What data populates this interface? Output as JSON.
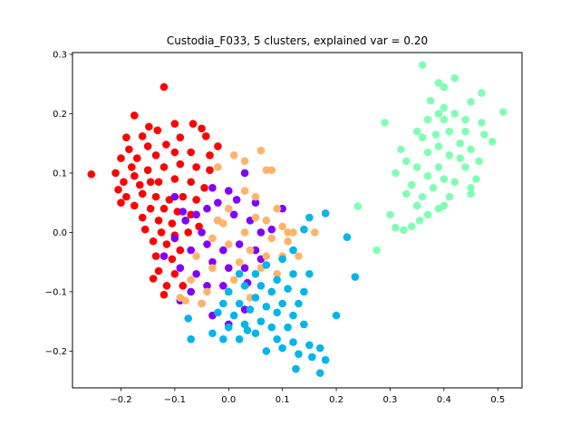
{
  "chart_data": {
    "type": "scatter",
    "title": "Custodia_F033, 5 clusters, explained var = 0.20",
    "xlabel": "",
    "ylabel": "",
    "xlim": [
      -0.29,
      0.545
    ],
    "ylim": [
      -0.262,
      0.303
    ],
    "x_ticks": [
      -0.2,
      -0.1,
      0.0,
      0.1,
      0.2,
      0.3,
      0.4,
      0.5
    ],
    "x_tick_labels": [
      "−0.2",
      "−0.1",
      "0.0",
      "0.1",
      "0.2",
      "0.3",
      "0.4",
      "0.5"
    ],
    "y_ticks": [
      -0.2,
      -0.1,
      0.0,
      0.1,
      0.2,
      0.3
    ],
    "y_tick_labels": [
      "−0.2",
      "−0.1",
      "0.0",
      "0.1",
      "0.2",
      "0.3"
    ],
    "grid": false,
    "legend": "none",
    "series": [
      {
        "color": "#ff0000",
        "points": [
          [
            -0.255,
            0.098
          ],
          [
            -0.12,
            0.245
          ],
          [
            -0.175,
            0.197
          ],
          [
            -0.148,
            0.178
          ],
          [
            -0.19,
            0.16
          ],
          [
            -0.16,
            0.162
          ],
          [
            -0.132,
            0.172
          ],
          [
            -0.1,
            0.183
          ],
          [
            -0.066,
            0.183
          ],
          [
            -0.185,
            0.14
          ],
          [
            -0.15,
            0.145
          ],
          [
            -0.116,
            0.148
          ],
          [
            -0.09,
            0.16
          ],
          [
            -0.042,
            0.162
          ],
          [
            -0.2,
            0.125
          ],
          [
            -0.17,
            0.125
          ],
          [
            -0.135,
            0.13
          ],
          [
            -0.1,
            0.135
          ],
          [
            -0.07,
            0.135
          ],
          [
            -0.035,
            0.13
          ],
          [
            -0.21,
            0.1
          ],
          [
            -0.18,
            0.11
          ],
          [
            -0.15,
            0.105
          ],
          [
            -0.12,
            0.11
          ],
          [
            -0.09,
            0.115
          ],
          [
            -0.06,
            0.11
          ],
          [
            -0.035,
            0.105
          ],
          [
            -0.195,
            0.085
          ],
          [
            -0.165,
            0.08
          ],
          [
            -0.13,
            0.085
          ],
          [
            -0.1,
            0.09
          ],
          [
            -0.07,
            0.085
          ],
          [
            -0.045,
            0.075
          ],
          [
            -0.19,
            0.06
          ],
          [
            -0.16,
            0.065
          ],
          [
            -0.135,
            0.06
          ],
          [
            -0.11,
            0.055
          ],
          [
            -0.085,
            0.06
          ],
          [
            -0.06,
            0.055
          ],
          [
            -0.2,
            0.05
          ],
          [
            -0.175,
            0.045
          ],
          [
            -0.145,
            0.04
          ],
          [
            -0.12,
            0.04
          ],
          [
            -0.095,
            0.035
          ],
          [
            -0.07,
            0.03
          ],
          [
            -0.16,
            0.025
          ],
          [
            -0.13,
            0.02
          ],
          [
            -0.105,
            0.015
          ],
          [
            -0.08,
            0.02
          ],
          [
            -0.055,
            0.01
          ],
          [
            -0.155,
            0.005
          ],
          [
            -0.125,
            0.0
          ],
          [
            -0.1,
            -0.005
          ],
          [
            -0.075,
            0.0
          ],
          [
            -0.14,
            -0.015
          ],
          [
            -0.115,
            -0.02
          ],
          [
            -0.09,
            -0.03
          ],
          [
            -0.135,
            -0.04
          ],
          [
            -0.105,
            -0.045
          ],
          [
            -0.13,
            -0.065
          ],
          [
            -0.1,
            -0.07
          ],
          [
            -0.115,
            -0.09
          ],
          [
            -0.085,
            -0.09
          ],
          [
            -0.12,
            -0.105
          ],
          [
            -0.14,
            -0.078
          ],
          [
            -0.02,
            0.145
          ],
          [
            -0.05,
            0.175
          ],
          [
            -0.205,
            0.072
          ],
          [
            -0.175,
            0.095
          ],
          [
            -0.145,
            0.085
          ]
        ]
      },
      {
        "color": "#8000ff",
        "points": [
          [
            -0.1,
            0.06
          ],
          [
            -0.06,
            0.03
          ],
          [
            -0.03,
            0.075
          ],
          [
            0.0,
            0.07
          ],
          [
            0.03,
            0.1
          ],
          [
            0.05,
            0.05
          ],
          [
            -0.08,
            0.02
          ],
          [
            -0.05,
            0.0
          ],
          [
            -0.02,
            0.02
          ],
          [
            0.01,
            0.03
          ],
          [
            0.04,
            0.02
          ],
          [
            0.06,
            0.0
          ],
          [
            -0.1,
            -0.01
          ],
          [
            -0.07,
            -0.03
          ],
          [
            -0.04,
            -0.02
          ],
          [
            -0.01,
            -0.03
          ],
          [
            0.02,
            -0.02
          ],
          [
            0.05,
            -0.03
          ],
          [
            -0.09,
            -0.06
          ],
          [
            -0.06,
            -0.07
          ],
          [
            -0.03,
            -0.05
          ],
          [
            0.0,
            -0.06
          ],
          [
            0.03,
            -0.06
          ],
          [
            -0.07,
            -0.1
          ],
          [
            -0.04,
            -0.09
          ],
          [
            -0.01,
            -0.09
          ],
          [
            -0.09,
            -0.115
          ],
          [
            -0.05,
            -0.12
          ],
          [
            -0.03,
            -0.14
          ],
          [
            0.0,
            -0.155
          ],
          [
            0.03,
            -0.13
          ],
          [
            0.1,
            0.04
          ],
          [
            0.08,
            0.005
          ],
          [
            0.06,
            -0.045
          ],
          [
            -0.02,
            0.05
          ],
          [
            -0.04,
            0.04
          ],
          [
            -0.085,
            0.035
          ],
          [
            0.015,
            0.055
          ],
          [
            -0.12,
            -0.04
          ],
          [
            0.035,
            -0.085
          ]
        ]
      },
      {
        "color": "#ffb469",
        "points": [
          [
            0.06,
            0.138
          ],
          [
            0.01,
            0.13
          ],
          [
            0.03,
            0.12
          ],
          [
            -0.02,
            0.11
          ],
          [
            0.07,
            0.105
          ],
          [
            0.08,
            0.105
          ],
          [
            0.03,
            0.07
          ],
          [
            0.09,
            0.04
          ],
          [
            0.1,
            0.01
          ],
          [
            0.11,
            0.0
          ],
          [
            0.12,
            0.0
          ],
          [
            0.16,
            0.0
          ],
          [
            0.05,
            0.06
          ],
          [
            0.0,
            0.04
          ],
          [
            -0.02,
            0.02
          ],
          [
            0.03,
            0.0
          ],
          [
            0.07,
            0.02
          ],
          [
            0.08,
            -0.01
          ],
          [
            0.07,
            -0.04
          ],
          [
            0.1,
            -0.04
          ],
          [
            -0.03,
            -0.01
          ],
          [
            0.0,
            -0.02
          ],
          [
            0.04,
            -0.03
          ],
          [
            0.06,
            -0.06
          ],
          [
            0.09,
            -0.07
          ],
          [
            -0.06,
            -0.04
          ],
          [
            -0.03,
            -0.06
          ],
          [
            0.01,
            -0.08
          ],
          [
            -0.07,
            -0.08
          ],
          [
            -0.04,
            -0.1
          ],
          [
            0.0,
            -0.1
          ],
          [
            -0.05,
            -0.12
          ],
          [
            -0.08,
            -0.115
          ],
          [
            -0.09,
            -0.11
          ],
          [
            0.04,
            -0.11
          ],
          [
            0.13,
            -0.04
          ],
          [
            0.11,
            -0.015
          ],
          [
            0.05,
            0.025
          ],
          [
            0.02,
            -0.05
          ],
          [
            -0.01,
            0.015
          ]
        ]
      },
      {
        "color": "#00b5eb",
        "points": [
          [
            0.18,
            0.032
          ],
          [
            0.15,
            0.025
          ],
          [
            0.14,
            0.005
          ],
          [
            0.22,
            -0.008
          ],
          [
            0.235,
            -0.075
          ],
          [
            0.12,
            -0.03
          ],
          [
            0.1,
            -0.045
          ],
          [
            0.07,
            -0.055
          ],
          [
            0.05,
            -0.07
          ],
          [
            0.02,
            -0.07
          ],
          [
            0.12,
            -0.07
          ],
          [
            0.15,
            -0.07
          ],
          [
            0.09,
            -0.08
          ],
          [
            0.06,
            -0.09
          ],
          [
            0.03,
            -0.09
          ],
          [
            0.0,
            -0.1
          ],
          [
            0.11,
            -0.095
          ],
          [
            0.14,
            -0.1
          ],
          [
            0.08,
            -0.1
          ],
          [
            0.05,
            -0.11
          ],
          [
            0.02,
            -0.12
          ],
          [
            -0.01,
            -0.12
          ],
          [
            0.1,
            -0.12
          ],
          [
            0.13,
            -0.12
          ],
          [
            0.07,
            -0.125
          ],
          [
            0.04,
            -0.13
          ],
          [
            0.01,
            -0.14
          ],
          [
            -0.02,
            -0.135
          ],
          [
            0.09,
            -0.135
          ],
          [
            0.12,
            -0.14
          ],
          [
            0.2,
            -0.14
          ],
          [
            0.06,
            -0.15
          ],
          [
            0.03,
            -0.155
          ],
          [
            0.0,
            -0.16
          ],
          [
            0.08,
            -0.16
          ],
          [
            0.11,
            -0.16
          ],
          [
            0.14,
            -0.155
          ],
          [
            -0.03,
            -0.17
          ],
          [
            0.05,
            -0.17
          ],
          [
            0.02,
            -0.18
          ],
          [
            0.09,
            -0.18
          ],
          [
            0.12,
            -0.185
          ],
          [
            0.15,
            -0.19
          ],
          [
            0.17,
            -0.195
          ],
          [
            0.1,
            -0.195
          ],
          [
            0.07,
            -0.2
          ],
          [
            0.13,
            -0.205
          ],
          [
            0.155,
            -0.21
          ],
          [
            0.18,
            -0.215
          ],
          [
            0.125,
            -0.23
          ],
          [
            0.17,
            -0.237
          ],
          [
            -0.07,
            -0.18
          ],
          [
            -0.075,
            -0.145
          ],
          [
            -0.01,
            -0.18
          ],
          [
            0.035,
            -0.165
          ]
        ]
      },
      {
        "color": "#80ffb4",
        "points": [
          [
            0.36,
            0.282
          ],
          [
            0.42,
            0.26
          ],
          [
            0.39,
            0.252
          ],
          [
            0.4,
            0.245
          ],
          [
            0.47,
            0.235
          ],
          [
            0.375,
            0.222
          ],
          [
            0.45,
            0.22
          ],
          [
            0.4,
            0.21
          ],
          [
            0.39,
            0.2
          ],
          [
            0.42,
            0.2
          ],
          [
            0.51,
            0.203
          ],
          [
            0.37,
            0.19
          ],
          [
            0.4,
            0.19
          ],
          [
            0.44,
            0.19
          ],
          [
            0.47,
            0.185
          ],
          [
            0.29,
            0.185
          ],
          [
            0.35,
            0.17
          ],
          [
            0.385,
            0.165
          ],
          [
            0.41,
            0.17
          ],
          [
            0.44,
            0.17
          ],
          [
            0.475,
            0.165
          ],
          [
            0.36,
            0.16
          ],
          [
            0.49,
            0.153
          ],
          [
            0.43,
            0.15
          ],
          [
            0.39,
            0.145
          ],
          [
            0.45,
            0.14
          ],
          [
            0.32,
            0.14
          ],
          [
            0.37,
            0.135
          ],
          [
            0.41,
            0.13
          ],
          [
            0.43,
            0.125
          ],
          [
            0.33,
            0.12
          ],
          [
            0.465,
            0.12
          ],
          [
            0.35,
            0.11
          ],
          [
            0.39,
            0.11
          ],
          [
            0.44,
            0.11
          ],
          [
            0.31,
            0.1
          ],
          [
            0.37,
            0.095
          ],
          [
            0.4,
            0.09
          ],
          [
            0.42,
            0.085
          ],
          [
            0.46,
            0.09
          ],
          [
            0.34,
            0.08
          ],
          [
            0.38,
            0.075
          ],
          [
            0.45,
            0.075
          ],
          [
            0.33,
            0.065
          ],
          [
            0.36,
            0.06
          ],
          [
            0.41,
            0.06
          ],
          [
            0.35,
            0.045
          ],
          [
            0.39,
            0.04
          ],
          [
            0.37,
            0.03
          ],
          [
            0.3,
            0.03
          ],
          [
            0.355,
            0.02
          ],
          [
            0.31,
            0.008
          ],
          [
            0.34,
            0.01
          ],
          [
            0.325,
            0.004
          ],
          [
            0.24,
            0.044
          ],
          [
            0.275,
            -0.03
          ],
          [
            0.4,
            0.045
          ],
          [
            0.45,
            0.065
          ]
        ]
      }
    ]
  }
}
